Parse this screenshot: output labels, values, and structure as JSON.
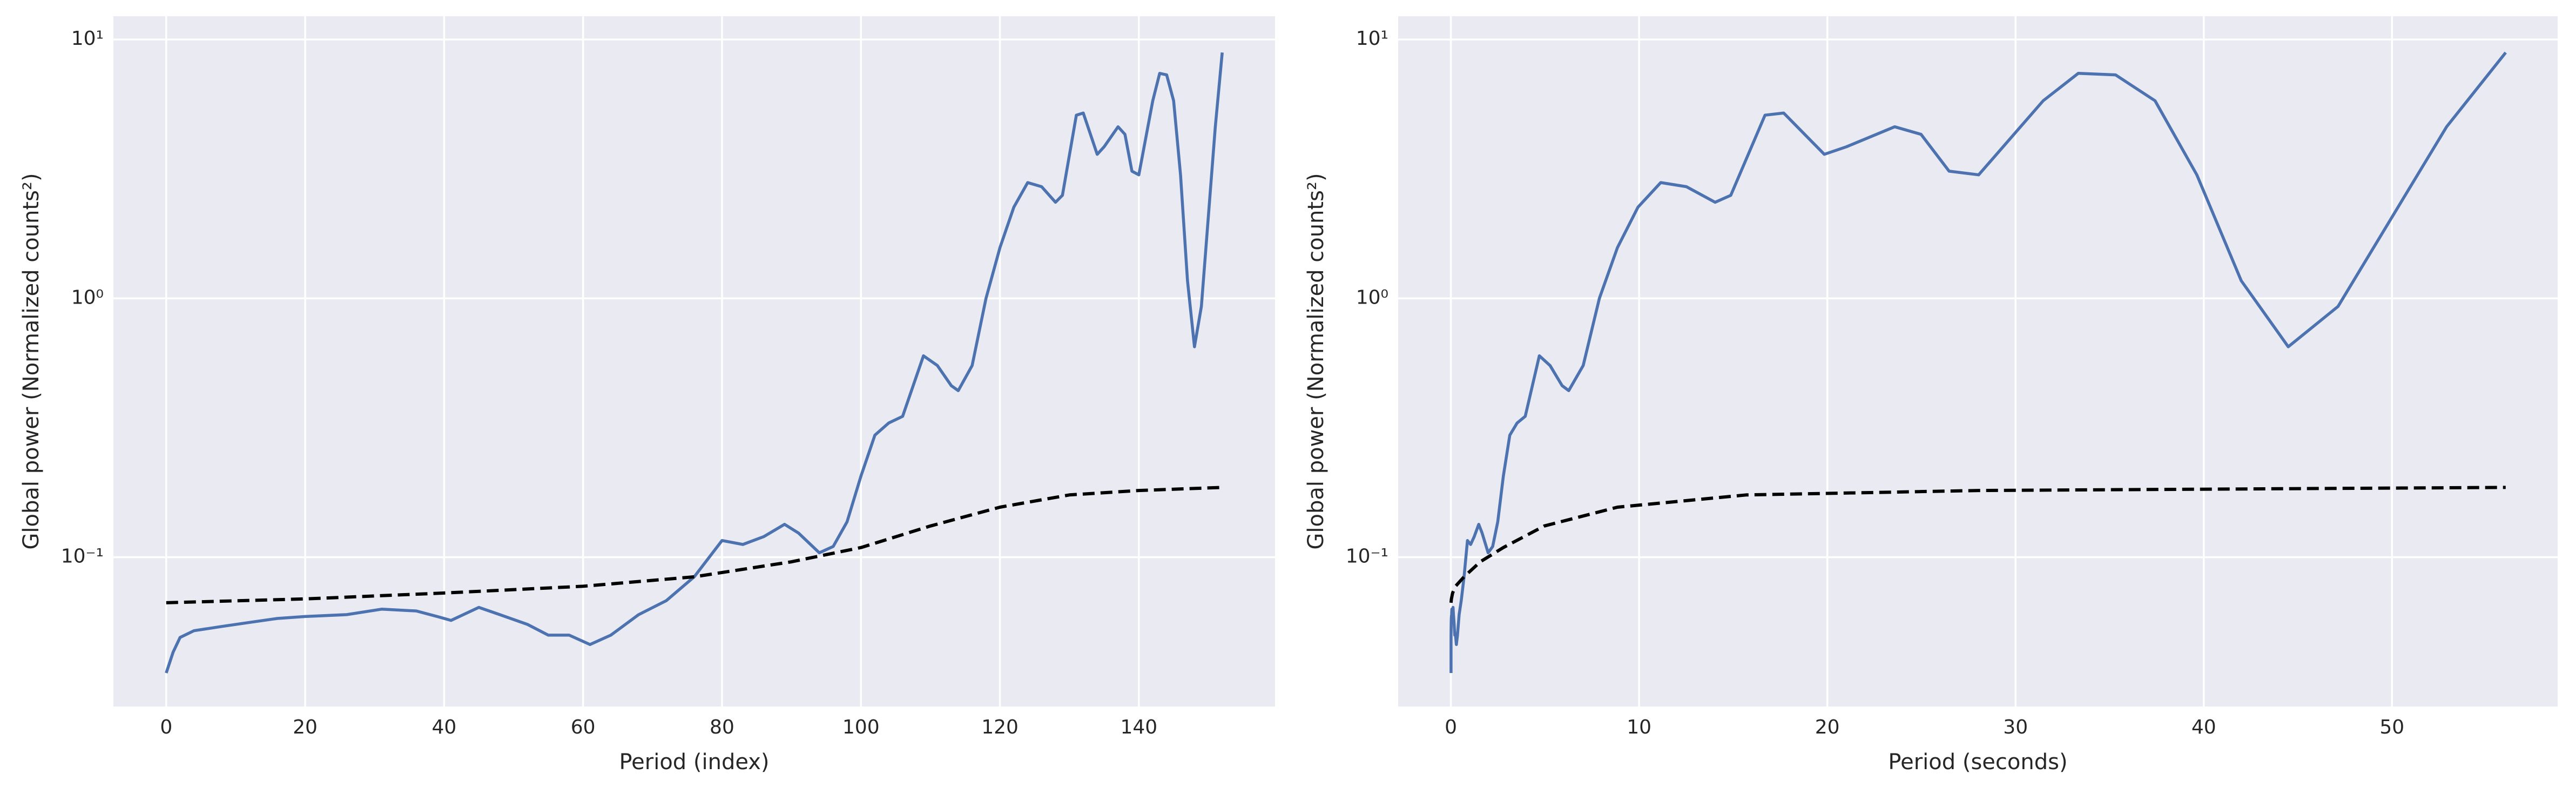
{
  "chart_data": [
    {
      "type": "line",
      "xlabel": "Period (index)",
      "ylabel": "Global power (Normalized counts²)",
      "xlim": [
        -7.6,
        159.6
      ],
      "ylim": [
        0.0265,
        12.3
      ],
      "yscale": "log",
      "grid": true,
      "xticks": [
        0,
        20,
        40,
        60,
        80,
        100,
        120,
        140
      ],
      "yticks": [
        {
          "value": 0.1,
          "label": "10⁻¹"
        },
        {
          "value": 1,
          "label": "10⁰"
        },
        {
          "value": 10,
          "label": "10¹"
        }
      ],
      "series": [
        {
          "color": "#4c72b0",
          "x": [
            0,
            1,
            2,
            4,
            8,
            12,
            16,
            20,
            26,
            31,
            36,
            39,
            41,
            45,
            48,
            52,
            55,
            58,
            61,
            64,
            68,
            72,
            76,
            80,
            83,
            86,
            89,
            91,
            94,
            96,
            98,
            100,
            102,
            104,
            106,
            109,
            111,
            113,
            114,
            116,
            118,
            120,
            122,
            124,
            126,
            128,
            129,
            131,
            132,
            134,
            135,
            137,
            138,
            139,
            140,
            142,
            143,
            144,
            145,
            146,
            147,
            148,
            149,
            151,
            152
          ],
          "values": [
            0.0357,
            0.043,
            0.049,
            0.052,
            0.054,
            0.056,
            0.058,
            0.059,
            0.06,
            0.063,
            0.062,
            0.059,
            0.057,
            0.064,
            0.06,
            0.055,
            0.05,
            0.05,
            0.046,
            0.05,
            0.06,
            0.068,
            0.084,
            0.116,
            0.112,
            0.12,
            0.134,
            0.124,
            0.104,
            0.11,
            0.137,
            0.206,
            0.296,
            0.33,
            0.35,
            0.6,
            0.55,
            0.46,
            0.44,
            0.55,
            1.0,
            1.57,
            2.25,
            2.8,
            2.7,
            2.35,
            2.5,
            5.1,
            5.2,
            3.6,
            3.85,
            4.6,
            4.3,
            3.1,
            3.0,
            5.8,
            7.4,
            7.3,
            5.8,
            3.0,
            1.17,
            0.65,
            0.93,
            4.6,
            8.9
          ]
        },
        {
          "color": "#000000",
          "dash": true,
          "x": [
            0,
            20,
            40,
            60,
            76,
            90,
            100,
            110,
            120,
            130,
            140,
            152
          ],
          "values": [
            0.0667,
            0.069,
            0.0727,
            0.0772,
            0.084,
            0.096,
            0.109,
            0.132,
            0.156,
            0.174,
            0.181,
            0.186
          ]
        }
      ]
    },
    {
      "type": "line",
      "xlabel": "Period (seconds)",
      "ylabel": "Global power (Normalized counts²)",
      "xlim": [
        -2.8,
        58.8
      ],
      "ylim": [
        0.0265,
        12.3
      ],
      "yscale": "log",
      "grid": true,
      "xticks": [
        0,
        10,
        20,
        30,
        40,
        50
      ],
      "yticks": [
        {
          "value": 0.1,
          "label": "10⁻¹"
        },
        {
          "value": 1,
          "label": "10⁰"
        },
        {
          "value": 10,
          "label": "10¹"
        }
      ],
      "series": [
        {
          "color": "#4c72b0",
          "x": [
            0.0087,
            0.0092,
            0.0097,
            0.011,
            0.014,
            0.017,
            0.022,
            0.028,
            0.039,
            0.052,
            0.069,
            0.082,
            0.092,
            0.116,
            0.139,
            0.174,
            0.208,
            0.247,
            0.294,
            0.349,
            0.44,
            0.55,
            0.7,
            0.88,
            1.05,
            1.24,
            1.48,
            1.66,
            1.98,
            2.22,
            2.49,
            2.79,
            3.13,
            3.52,
            3.95,
            4.7,
            5.27,
            5.91,
            6.26,
            7.03,
            7.89,
            8.85,
            9.94,
            11.15,
            12.51,
            14.04,
            14.87,
            16.69,
            17.68,
            19.84,
            21.01,
            23.58,
            24.98,
            26.47,
            28.04,
            31.47,
            33.33,
            35.31,
            37.41,
            39.63,
            41.99,
            44.49,
            47.13,
            52.9,
            56.04
          ],
          "values": [
            0.0357,
            0.043,
            0.049,
            0.052,
            0.054,
            0.056,
            0.058,
            0.059,
            0.06,
            0.063,
            0.062,
            0.059,
            0.057,
            0.064,
            0.06,
            0.055,
            0.05,
            0.05,
            0.046,
            0.05,
            0.06,
            0.068,
            0.084,
            0.116,
            0.112,
            0.12,
            0.134,
            0.124,
            0.104,
            0.11,
            0.137,
            0.206,
            0.296,
            0.33,
            0.35,
            0.6,
            0.55,
            0.46,
            0.44,
            0.55,
            1.0,
            1.57,
            2.25,
            2.8,
            2.7,
            2.35,
            2.5,
            5.1,
            5.2,
            3.6,
            3.85,
            4.6,
            4.3,
            3.1,
            3.0,
            5.8,
            7.4,
            7.3,
            5.8,
            3.0,
            1.17,
            0.65,
            0.93,
            4.6,
            8.9
          ]
        },
        {
          "color": "#000000",
          "dash": true,
          "x": [
            0.0087,
            0.028,
            0.092,
            0.247,
            0.7,
            1.56,
            2.79,
            4.96,
            8.85,
            15.69,
            28.04,
            56.04
          ],
          "values": [
            0.0667,
            0.069,
            0.0727,
            0.0772,
            0.084,
            0.096,
            0.109,
            0.132,
            0.156,
            0.174,
            0.181,
            0.186
          ]
        }
      ]
    }
  ]
}
